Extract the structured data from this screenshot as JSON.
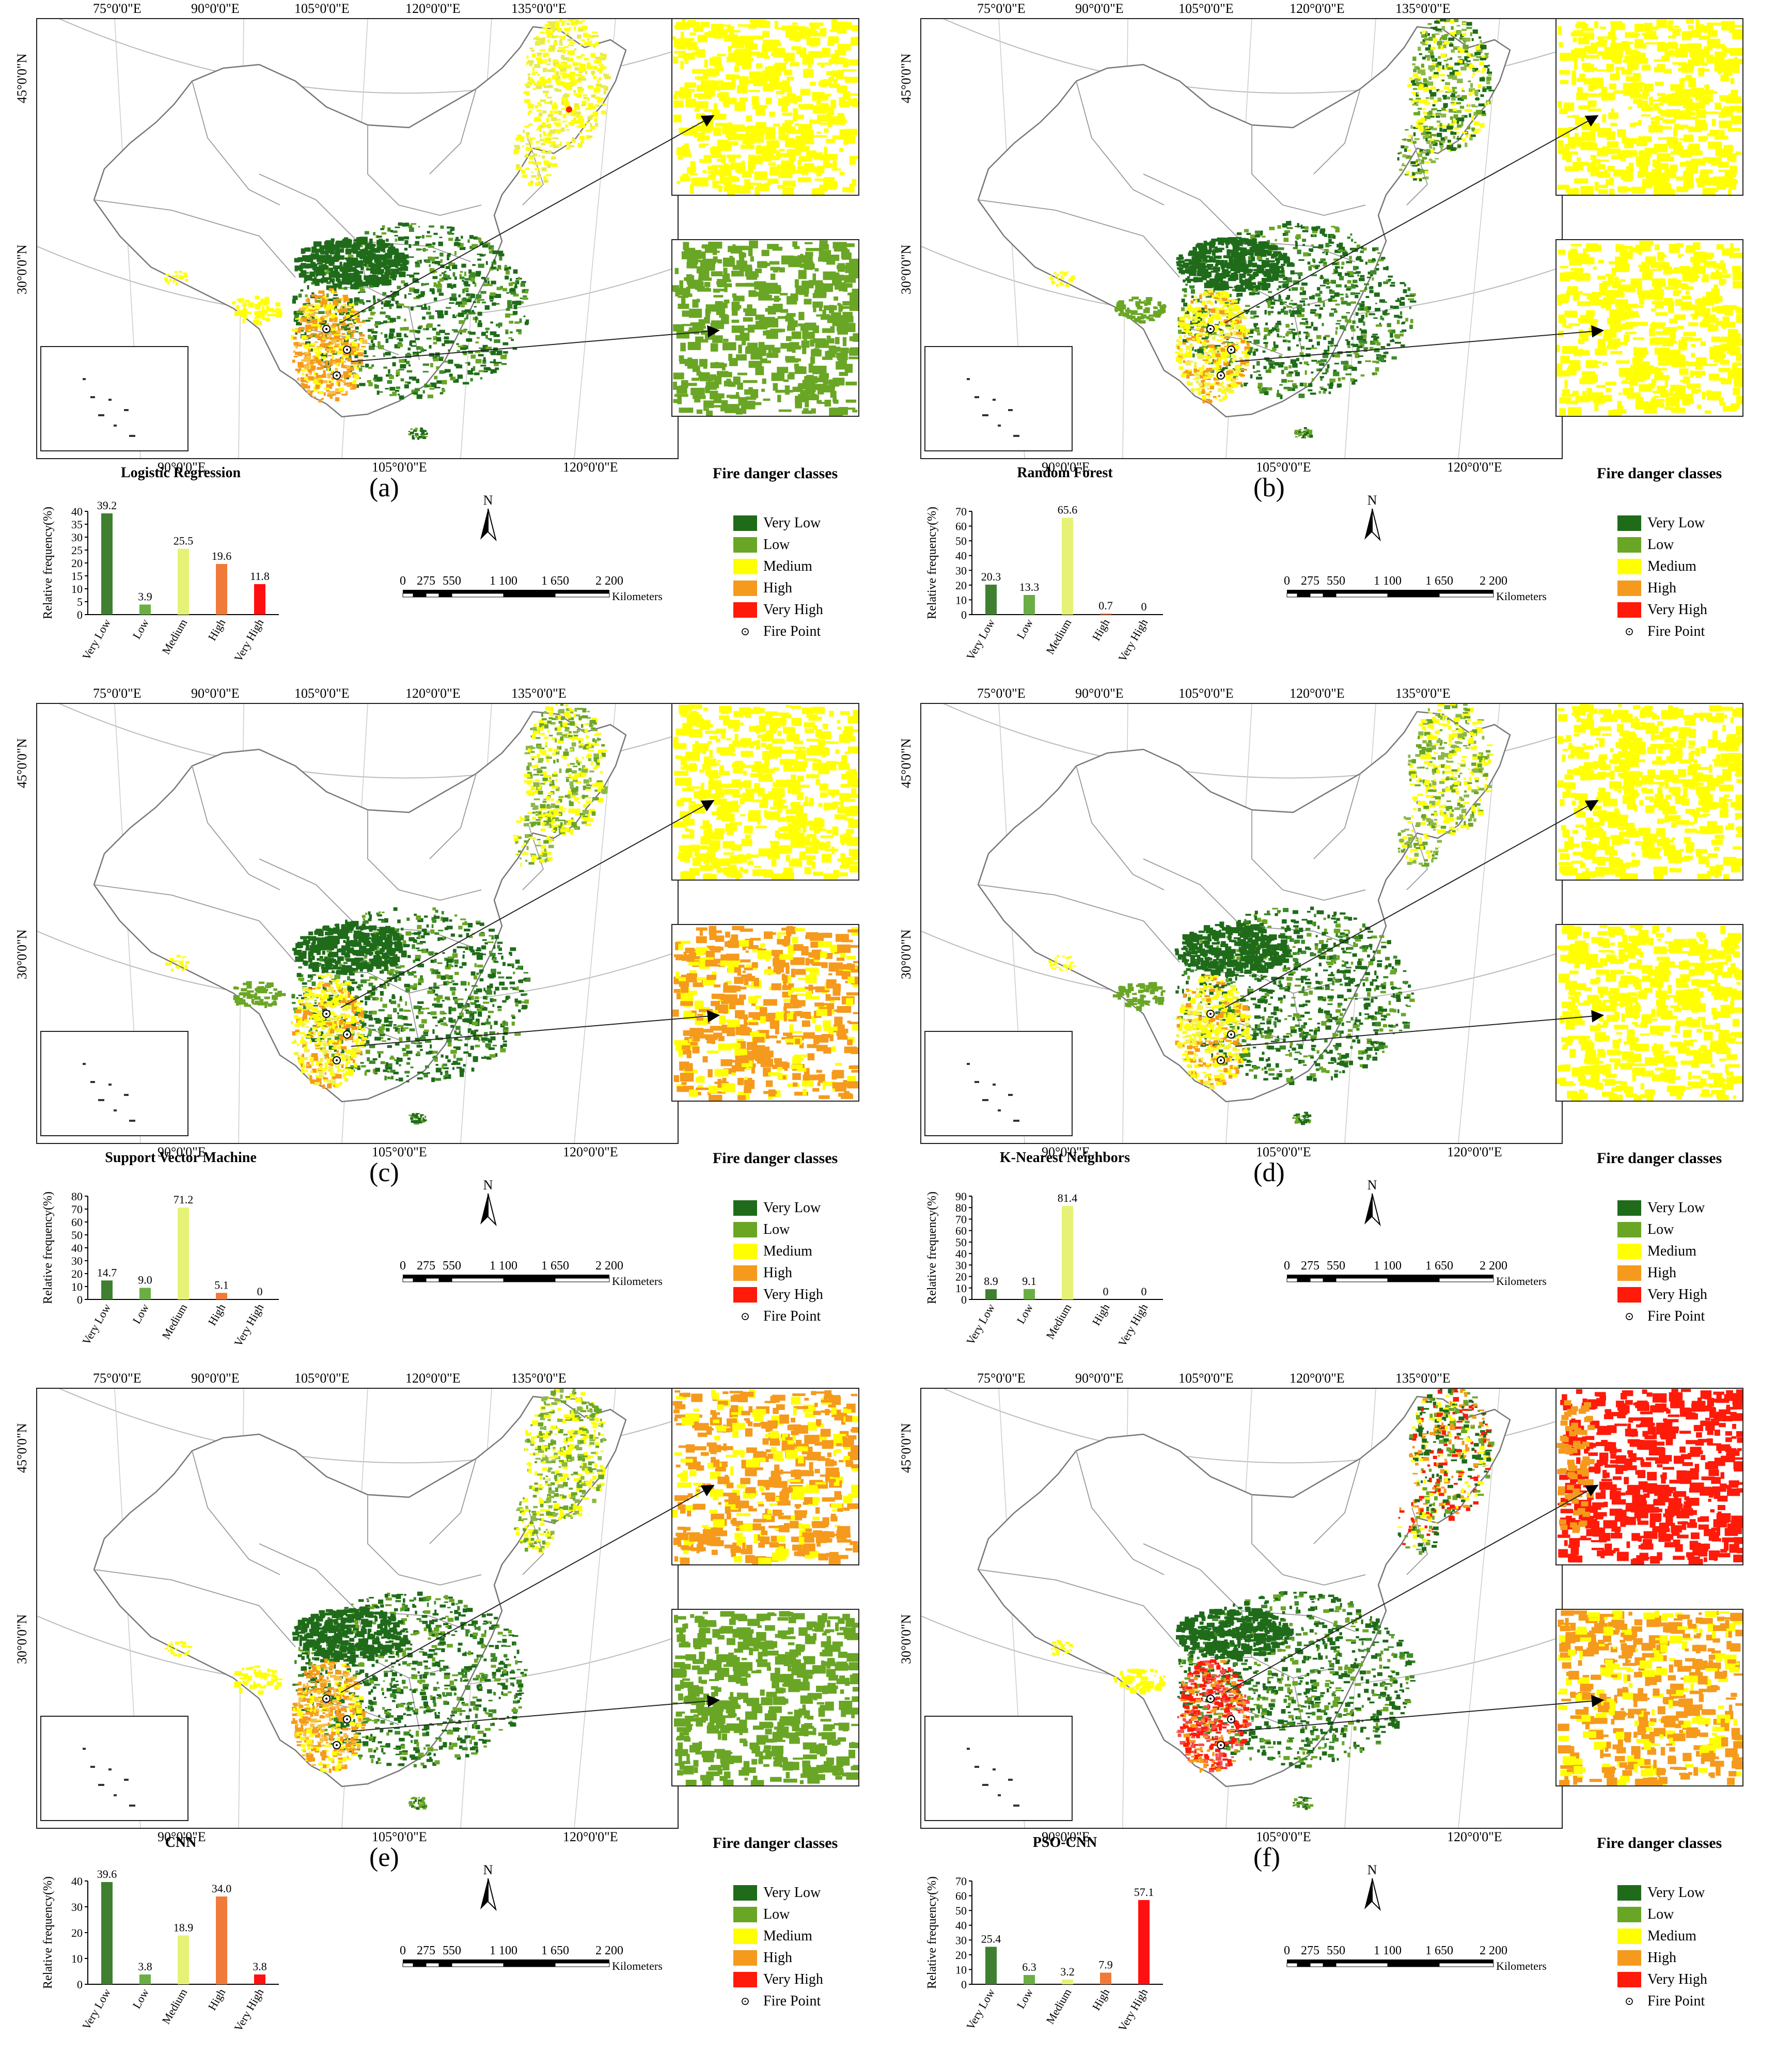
{
  "colors": {
    "very_low": "#1f6b1a",
    "low": "#6aa625",
    "medium": "#ffff00",
    "high": "#f59a1c",
    "very_high": "#ff1a0a",
    "bar_very_low": "#3f7f2f",
    "bar_low": "#6aae45",
    "bar_medium": "#e6f275",
    "bar_high": "#f07a3a",
    "bar_very_high": "#ff1010"
  },
  "map_labels": {
    "top_lons": [
      "75°0'0\"E",
      "90°0'0\"E",
      "105°0'0\"E",
      "120°0'0\"E",
      "135°0'0\"E"
    ],
    "bottom_lons": [
      "90°0'0\"E",
      "105°0'0\"E",
      "120°0'0\"E"
    ],
    "lats": [
      "45°0'0\"N",
      "30°0'0\"N"
    ],
    "zoom_lats": [
      "45°0'0\"N",
      "30°0'0\"N"
    ]
  },
  "legend": {
    "title": "Fire danger classes",
    "items": [
      "Very Low",
      "Low",
      "Medium",
      "High",
      "Very High"
    ],
    "fire_point": "Fire Point"
  },
  "scale": {
    "ticks": [
      "0",
      "275",
      "550",
      "1 100",
      "1 650",
      "2 200"
    ],
    "unit": "Kilometers"
  },
  "north_label": "N",
  "chart_ylabel": "Relative frequency(%)",
  "panels": [
    {
      "letter": "(a)",
      "model": "Logistic Regression",
      "zoom_top_class": "medium",
      "zoom_bot_class": "low"
    },
    {
      "letter": "(b)",
      "model": "Random Forest",
      "zoom_top_class": "medium",
      "zoom_bot_class": "medium"
    },
    {
      "letter": "(c)",
      "model": "Support Vector Machine",
      "zoom_top_class": "medium",
      "zoom_bot_class": "high"
    },
    {
      "letter": "(d)",
      "model": "K-Nearest Neighbors",
      "zoom_top_class": "medium",
      "zoom_bot_class": "medium"
    },
    {
      "letter": "(e)",
      "model": "CNN",
      "zoom_top_class": "high",
      "zoom_bot_class": "low"
    },
    {
      "letter": "(f)",
      "model": "PSO-CNN",
      "zoom_top_class": "very_high",
      "zoom_bot_class": "high"
    }
  ],
  "chart_data": [
    {
      "type": "bar",
      "title": "Logistic Regression",
      "ylabel": "Relative frequency(%)",
      "categories": [
        "Very Low",
        "Low",
        "Medium",
        "High",
        "Very High"
      ],
      "values": [
        39.2,
        3.9,
        25.5,
        19.6,
        11.8
      ],
      "labels": [
        "39.2",
        "3.9",
        "25.5",
        "19.6",
        "11.8"
      ],
      "yticks": [
        0,
        5,
        10,
        15,
        20,
        25,
        30,
        35,
        40
      ],
      "ylim": [
        0,
        40
      ]
    },
    {
      "type": "bar",
      "title": "Random Forest",
      "ylabel": "Relative frequency(%)",
      "categories": [
        "Very Low",
        "Low",
        "Medium",
        "High",
        "Very High"
      ],
      "values": [
        20.3,
        13.3,
        65.6,
        0.7,
        0
      ],
      "labels": [
        "20.3",
        "13.3",
        "65.6",
        "0.7",
        "0"
      ],
      "yticks": [
        0,
        10,
        20,
        30,
        40,
        50,
        60,
        70
      ],
      "ylim": [
        0,
        70
      ]
    },
    {
      "type": "bar",
      "title": "Support Vector Machine",
      "ylabel": "Relative frequency(%)",
      "categories": [
        "Very Low",
        "Low",
        "Medium",
        "High",
        "Very High"
      ],
      "values": [
        14.7,
        9.0,
        71.2,
        5.1,
        0
      ],
      "labels": [
        "14.7",
        "9.0",
        "71.2",
        "5.1",
        "0"
      ],
      "yticks": [
        0,
        10,
        20,
        30,
        40,
        50,
        60,
        70,
        80
      ],
      "ylim": [
        0,
        80
      ]
    },
    {
      "type": "bar",
      "title": "K-Nearest Neighbors",
      "ylabel": "Relative frequency(%)",
      "categories": [
        "Very Low",
        "Low",
        "Medium",
        "High",
        "Very High"
      ],
      "values": [
        8.9,
        9.1,
        81.4,
        0,
        0
      ],
      "labels": [
        "8.9",
        "9.1",
        "81.4",
        "0",
        "0"
      ],
      "yticks": [
        0,
        10,
        20,
        30,
        40,
        50,
        60,
        70,
        80,
        90
      ],
      "ylim": [
        0,
        90
      ]
    },
    {
      "type": "bar",
      "title": "CNN",
      "ylabel": "Relative frequency(%)",
      "categories": [
        "Very Low",
        "Low",
        "Medium",
        "High",
        "Very High"
      ],
      "values": [
        39.6,
        3.8,
        18.9,
        34.0,
        3.8
      ],
      "labels": [
        "39.6",
        "3.8",
        "18.9",
        "34.0",
        "3.8"
      ],
      "yticks": [
        0,
        10,
        20,
        30,
        40
      ],
      "ylim": [
        0,
        40
      ]
    },
    {
      "type": "bar",
      "title": "PSO-CNN",
      "ylabel": "Relative frequency(%)",
      "categories": [
        "Very Low",
        "Low",
        "Medium",
        "High",
        "Very High"
      ],
      "values": [
        25.4,
        6.3,
        3.2,
        7.9,
        57.1
      ],
      "labels": [
        "25.4",
        "6.3",
        "3.2",
        "7.9",
        "57.1"
      ],
      "yticks": [
        0,
        10,
        20,
        30,
        40,
        50,
        60,
        70
      ],
      "ylim": [
        0,
        70
      ]
    }
  ]
}
